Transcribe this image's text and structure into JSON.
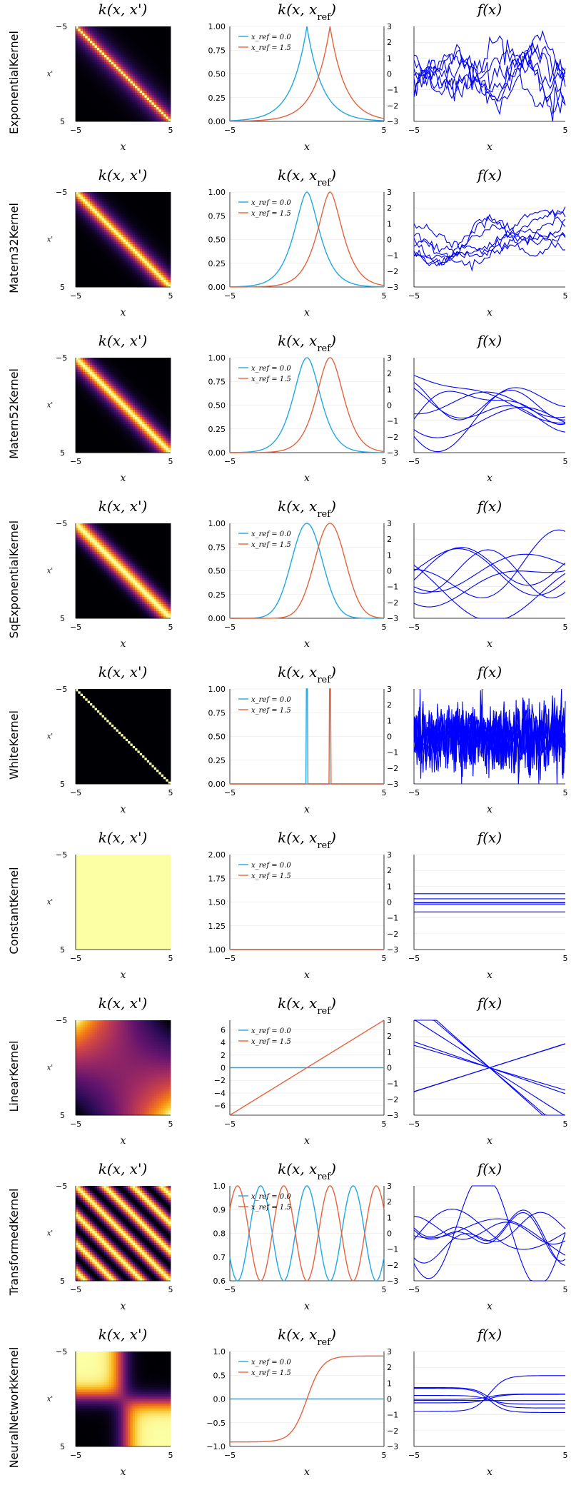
{
  "chart_data": {
    "type": "line",
    "rows": [
      {
        "kernel": "ExponentialKernel"
      },
      {
        "kernel": "Matern32Kernel"
      },
      {
        "kernel": "Matern52Kernel"
      },
      {
        "kernel": "SqExponentialKernel"
      },
      {
        "kernel": "WhiteKernel"
      },
      {
        "kernel": "ConstantKernel"
      },
      {
        "kernel": "LinearKernel"
      },
      {
        "kernel": "TransformedKernel"
      },
      {
        "kernel": "NeuralNetworkKernel"
      }
    ],
    "column_titles": [
      "k(x, x')",
      "k(x, x_ref)",
      "f(x)"
    ],
    "x_label": "x",
    "heatmap_y_label": "x'",
    "x_range": [
      -5,
      5
    ],
    "x_ticks": [
      "−5",
      "5"
    ],
    "heatmap_y_ticks": [
      "−5",
      "5"
    ],
    "legend": [
      "x_ref = 0.0",
      "x_ref = 1.5"
    ],
    "x_ref_values": [
      0.0,
      1.5
    ],
    "series_colors": {
      "x_ref_0": "#1ea7e6",
      "x_ref_1_5": "#e6623c",
      "samples": "#0000ff"
    },
    "middle_panels": [
      {
        "ylim": [
          0,
          1
        ],
        "yticks": [
          "0.00",
          "0.25",
          "0.50",
          "0.75",
          "1.00"
        ]
      },
      {
        "ylim": [
          0,
          1
        ],
        "yticks": [
          "0.00",
          "0.25",
          "0.50",
          "0.75",
          "1.00"
        ]
      },
      {
        "ylim": [
          0,
          1
        ],
        "yticks": [
          "0.00",
          "0.25",
          "0.50",
          "0.75",
          "1.00"
        ]
      },
      {
        "ylim": [
          0,
          1
        ],
        "yticks": [
          "0.00",
          "0.25",
          "0.50",
          "0.75",
          "1.00"
        ]
      },
      {
        "ylim": [
          0,
          1
        ],
        "yticks": [
          "0.00",
          "0.25",
          "0.50",
          "0.75",
          "1.00"
        ]
      },
      {
        "ylim": [
          1,
          2
        ],
        "yticks": [
          "1.00",
          "1.25",
          "1.50",
          "1.75",
          "2.00"
        ]
      },
      {
        "ylim": [
          -7.5,
          7.5
        ],
        "yticks": [
          "−6",
          "−4",
          "−2",
          "0",
          "2",
          "4",
          "6"
        ]
      },
      {
        "ylim": [
          0.6,
          1.0
        ],
        "yticks": [
          "0.6",
          "0.7",
          "0.8",
          "0.9",
          "1.0"
        ]
      },
      {
        "ylim": [
          -1,
          1
        ],
        "yticks": [
          "−1.0",
          "−0.5",
          "0.0",
          "0.5",
          "1.0"
        ]
      }
    ],
    "shared_right_axis": {
      "ylim": [
        -3,
        3
      ],
      "yticks": [
        "−3",
        "−2",
        "−1",
        "0",
        "1",
        "2",
        "3"
      ]
    },
    "sample_panels": {
      "ylim": [
        -3,
        3
      ],
      "yticks": [
        "−3",
        "−2",
        "−1",
        "0",
        "1",
        "2",
        "3"
      ],
      "n_samples": 7
    }
  }
}
